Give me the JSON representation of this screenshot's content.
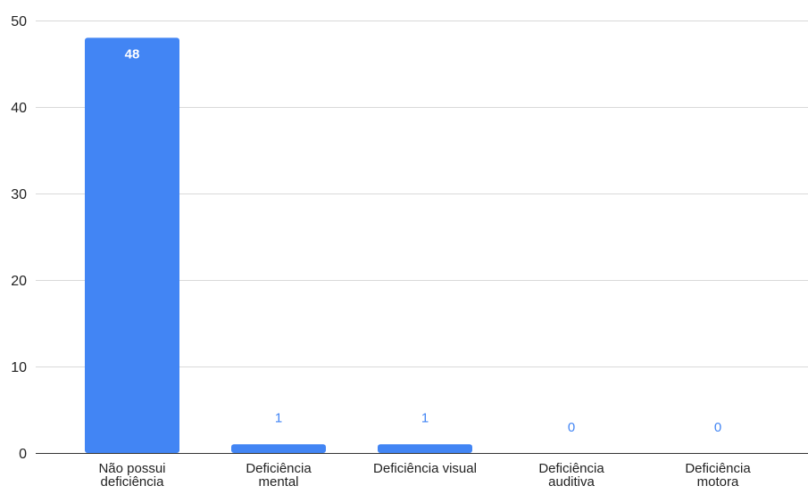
{
  "chart_data": {
    "type": "bar",
    "title": "",
    "xlabel": "",
    "ylabel": "",
    "categories": [
      [
        "Não possui",
        "deficiência"
      ],
      [
        "Deficiência",
        "mental"
      ],
      [
        "Deficiência visual"
      ],
      [
        "Deficiência",
        "auditiva"
      ],
      [
        "Deficiência",
        "motora"
      ]
    ],
    "values": [
      48,
      1,
      1,
      0,
      0
    ],
    "data_labels": [
      "48",
      "1",
      "1",
      "0",
      "0"
    ],
    "ylim": [
      0,
      50
    ],
    "yticks": [
      0,
      10,
      20,
      30,
      40,
      50
    ],
    "grid": true,
    "legend": "none",
    "colors": {
      "bar": "#4285f4",
      "label_inside": "#ffffff",
      "label_outside": "#4285f4",
      "grid": "#d9d9d9",
      "axis": "#333333",
      "text": "#222222"
    }
  }
}
